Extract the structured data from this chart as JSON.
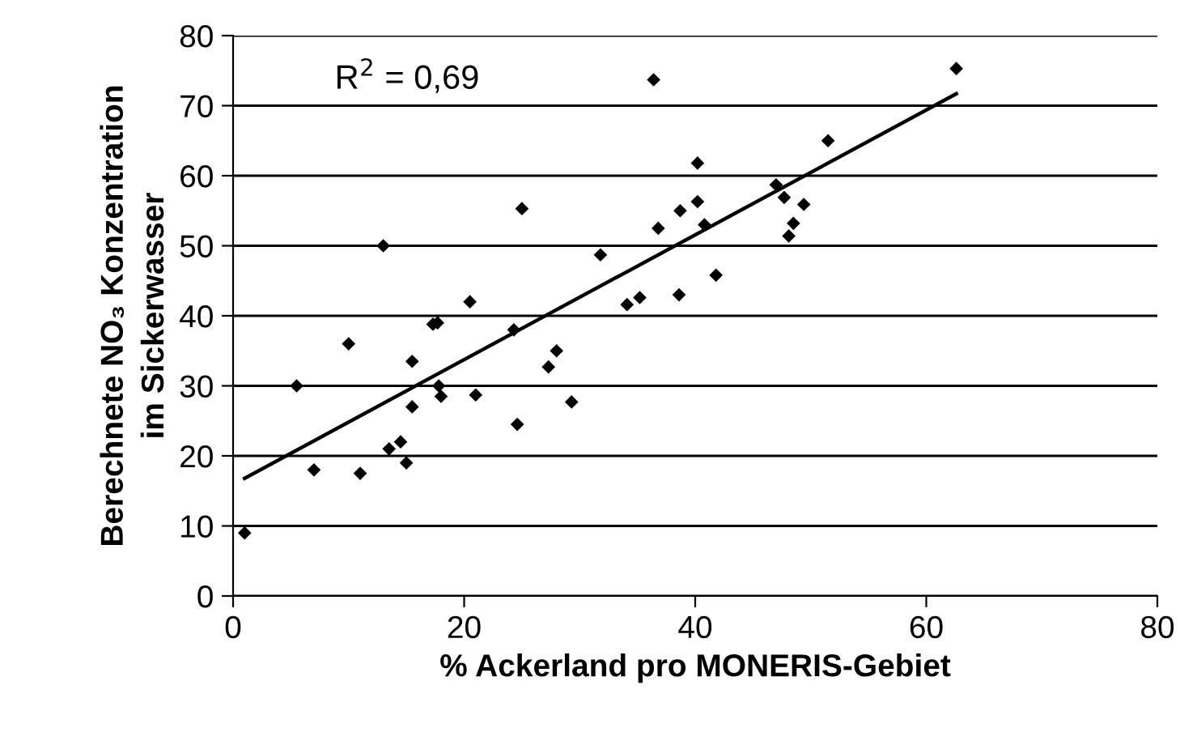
{
  "chart_data": {
    "type": "scatter",
    "xlabel": "% Ackerland pro MONERIS-Gebiet",
    "ylabel": "Berechnete NO₃ Konzentration\nim Sickerwasser",
    "annotations": [
      "R$^{2}$ = 0,69"
    ],
    "xlim": [
      0,
      80
    ],
    "ylim": [
      0,
      80
    ],
    "xticks": [
      0,
      20,
      40,
      60,
      80
    ],
    "yticks": [
      0,
      10,
      20,
      30,
      40,
      50,
      60,
      70,
      80
    ],
    "grid": "y",
    "legend": false,
    "marker": "diamond",
    "series": [
      {
        "color": "#000000",
        "x": [
          1,
          5.5,
          7,
          10,
          11,
          13,
          13.5,
          14.5,
          15,
          15.5,
          15.5,
          17.3,
          17.7,
          17.8,
          18,
          20.5,
          21,
          24.3,
          24.6,
          25,
          27.3,
          28,
          29.3,
          31.8,
          34.1,
          35.2,
          36.4,
          36.8,
          38.6,
          38.7,
          40.2,
          40.2,
          40.8,
          41.8,
          47,
          47.7,
          48.1,
          48.5,
          49.4,
          51.5,
          62.6
        ],
        "values": [
          9,
          30,
          18,
          36,
          17.5,
          50,
          21,
          22,
          19,
          27,
          33.5,
          38.8,
          39,
          30,
          28.5,
          42,
          28.7,
          38,
          24.5,
          55.3,
          32.7,
          35,
          27.7,
          48.7,
          41.6,
          42.6,
          73.7,
          52.5,
          43,
          55,
          61.8,
          56.3,
          53,
          45.8,
          58.7,
          56.9,
          51.4,
          53.2,
          55.9,
          65,
          75.3
        ]
      },
      {
        "type": "line",
        "color": "#000000",
        "x": [
          1,
          62.6
        ],
        "values": [
          16.8,
          71.7
        ],
        "marker": "none",
        "line_style": "solid"
      }
    ]
  }
}
